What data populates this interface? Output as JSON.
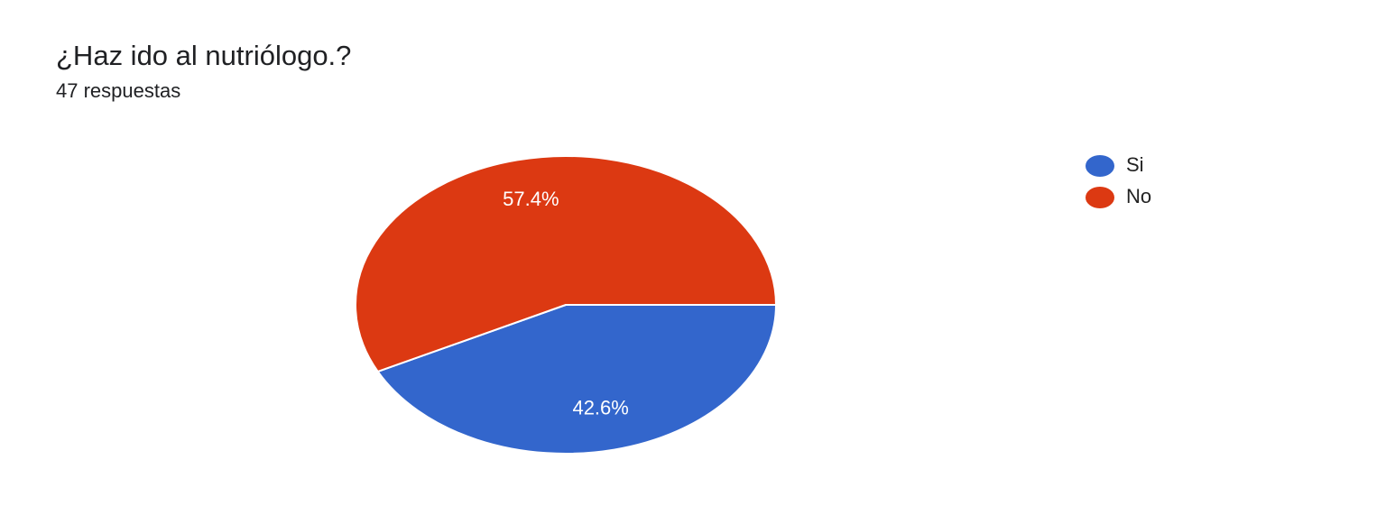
{
  "chart_data": {
    "type": "pie",
    "title": "¿Haz ido al nutriólogo.?",
    "subtitle": "47 respuestas",
    "categories": [
      "Si",
      "No"
    ],
    "values": [
      42.6,
      57.4
    ],
    "value_labels": [
      "42.6%",
      "57.4%"
    ],
    "colors": [
      "#3366cc",
      "#dc3912"
    ],
    "legend": "right"
  }
}
